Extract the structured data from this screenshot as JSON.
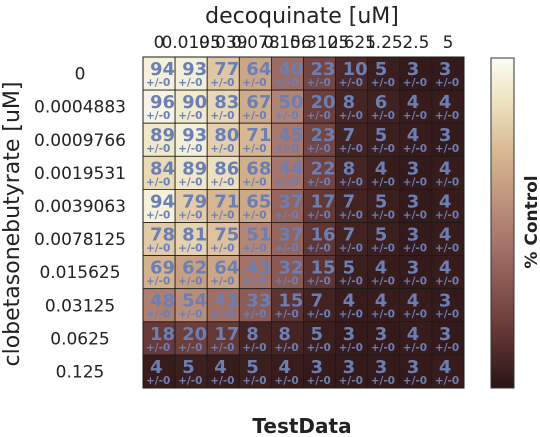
{
  "chart_data": {
    "type": "heatmap",
    "title": "decoquinate [uM]",
    "ylabel": "clobetasonebutyrate [uM]",
    "xlabel": "TestData",
    "colorbar_label": "% Control",
    "x_ticks": [
      "0",
      "0.0195",
      "0.039",
      "0.078",
      "0.156",
      "0.3125",
      "0.625",
      "1.25",
      "2.5",
      "5"
    ],
    "y_ticks": [
      "0",
      "0.0004883",
      "0.0009766",
      "0.0019531",
      "0.0039063",
      "0.0078125",
      "0.015625",
      "0.03125",
      "0.0625",
      "0.125"
    ],
    "values": [
      [
        94,
        93,
        77,
        64,
        40,
        23,
        10,
        5,
        3,
        3
      ],
      [
        96,
        90,
        83,
        67,
        50,
        20,
        8,
        6,
        4,
        4
      ],
      [
        89,
        93,
        80,
        71,
        45,
        23,
        7,
        5,
        4,
        3
      ],
      [
        84,
        89,
        86,
        68,
        44,
        22,
        8,
        4,
        3,
        4
      ],
      [
        94,
        79,
        71,
        65,
        37,
        17,
        7,
        5,
        3,
        4
      ],
      [
        78,
        81,
        75,
        51,
        37,
        16,
        7,
        5,
        3,
        4
      ],
      [
        69,
        62,
        64,
        43,
        32,
        15,
        5,
        4,
        3,
        4
      ],
      [
        48,
        54,
        41,
        33,
        15,
        7,
        4,
        4,
        4,
        3
      ],
      [
        18,
        20,
        17,
        8,
        8,
        5,
        3,
        3,
        4,
        3
      ],
      [
        4,
        5,
        4,
        5,
        4,
        3,
        3,
        3,
        3,
        4
      ]
    ],
    "cell_annotation": "+/-0",
    "color_range": [
      0,
      100
    ],
    "colormap": [
      "#2a1414",
      "#6e3e3b",
      "#a8776d",
      "#d6b48e",
      "#efe6c4",
      "#fbfbf5"
    ]
  }
}
